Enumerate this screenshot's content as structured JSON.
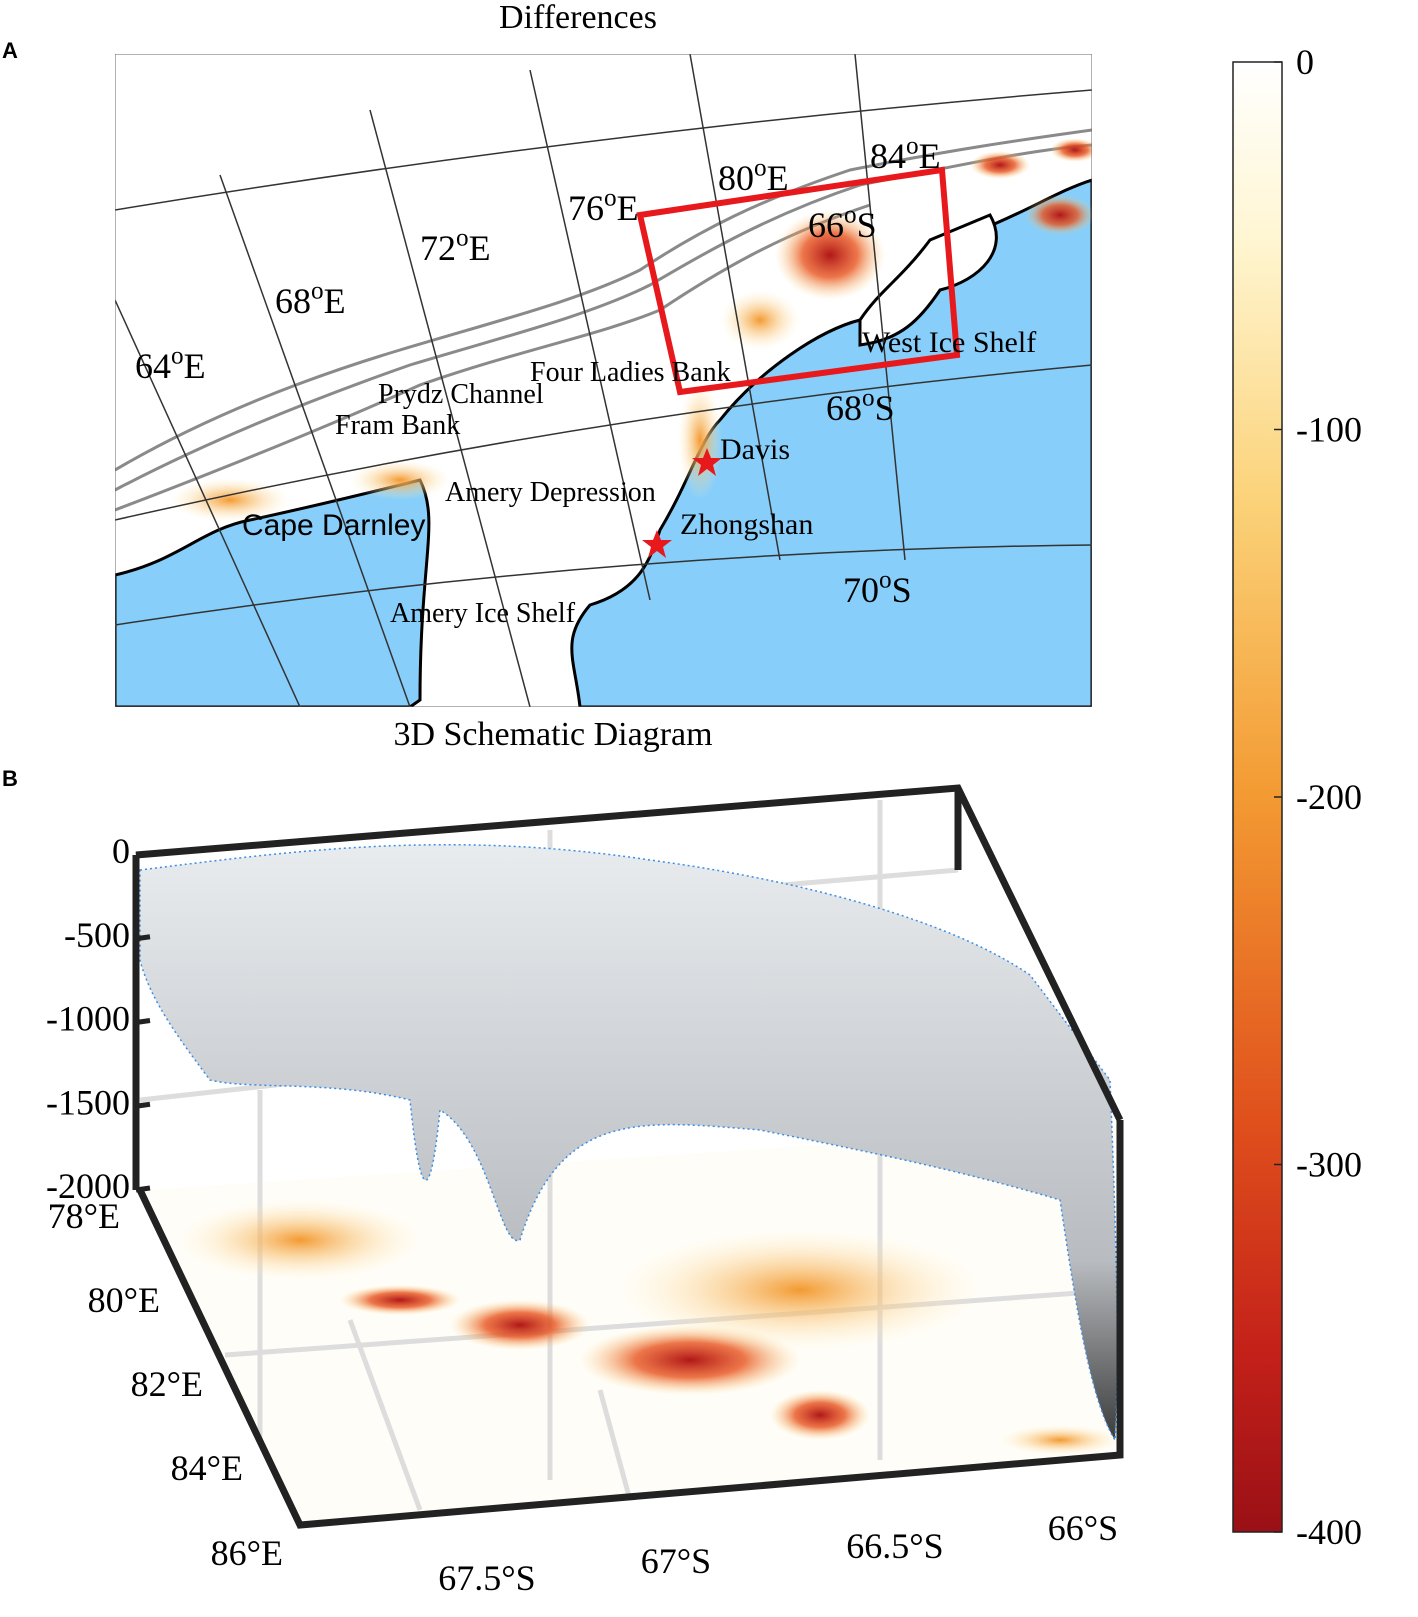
{
  "panel_a": {
    "label": "A",
    "title": "Differences",
    "lon_labels": [
      {
        "deg": "64",
        "sup": "o",
        "hem": "E"
      },
      {
        "deg": "68",
        "sup": "o",
        "hem": "E"
      },
      {
        "deg": "72",
        "sup": "o",
        "hem": "E"
      },
      {
        "deg": "76",
        "sup": "o",
        "hem": "E"
      },
      {
        "deg": "80",
        "sup": "o",
        "hem": "E"
      },
      {
        "deg": "84",
        "sup": "o",
        "hem": "E"
      }
    ],
    "lat_labels": [
      {
        "deg": "66",
        "sup": "o",
        "hem": "S"
      },
      {
        "deg": "68",
        "sup": "o",
        "hem": "S"
      },
      {
        "deg": "70",
        "sup": "o",
        "hem": "S"
      }
    ],
    "place_names": [
      "Prydz Channel",
      "Fram Bank",
      "Four Ladies Bank",
      "West Ice Shelf",
      "Amery Depression",
      "Cape Darnley",
      "Amery Ice Shelf",
      "Davis",
      "Zhongshan"
    ]
  },
  "panel_b": {
    "label": "B",
    "title": "3D Schematic Diagram",
    "depth_ticks": [
      0,
      -500,
      -1000,
      -1500,
      -2000
    ],
    "lon_ticks": [
      "78°E",
      "80°E",
      "82°E",
      "84°E",
      "86°E"
    ],
    "lat_ticks": [
      "67.5°S",
      "67°S",
      "66.5°S",
      "66°S"
    ]
  },
  "colorbar": {
    "lim": [
      -400,
      0
    ],
    "ticks": [
      0,
      -100,
      -200,
      -300,
      -400
    ]
  }
}
